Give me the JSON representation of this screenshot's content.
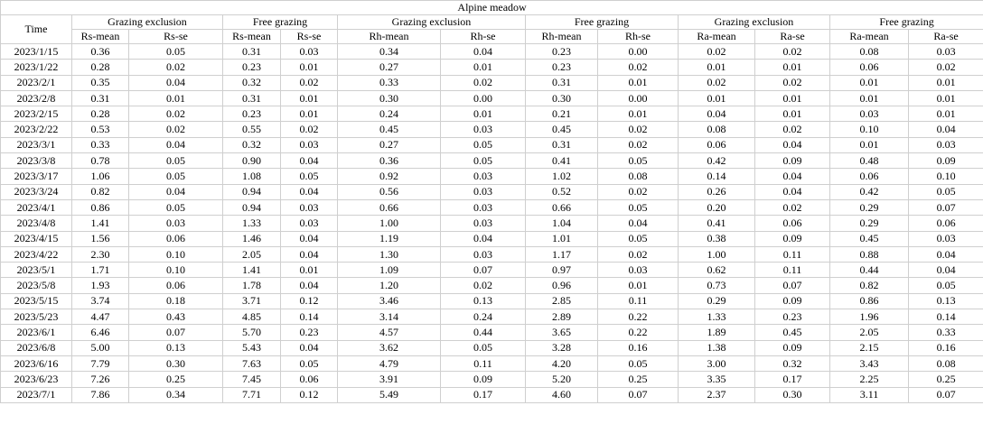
{
  "table": {
    "title": "Alpine meadow",
    "time_label": "Time",
    "groups": [
      {
        "label": "Grazing exclusion",
        "cols": [
          "Rs-mean",
          "Rs-se"
        ]
      },
      {
        "label": "Free grazing",
        "cols": [
          "Rs-mean",
          "Rs-se"
        ]
      },
      {
        "label": "Grazing exclusion",
        "cols": [
          "Rh-mean",
          "Rh-se"
        ]
      },
      {
        "label": "Free grazing",
        "cols": [
          "Rh-mean",
          "Rh-se"
        ]
      },
      {
        "label": "Grazing exclusion",
        "cols": [
          "Ra-mean",
          "Ra-se"
        ]
      },
      {
        "label": "Free grazing",
        "cols": [
          "Ra-mean",
          "Ra-se"
        ]
      }
    ],
    "rows": [
      {
        "time": "2023/1/15",
        "values": [
          "0.36",
          "0.05",
          "0.31",
          "0.03",
          "0.34",
          "0.04",
          "0.23",
          "0.00",
          "0.02",
          "0.02",
          "0.08",
          "0.03"
        ]
      },
      {
        "time": "2023/1/22",
        "values": [
          "0.28",
          "0.02",
          "0.23",
          "0.01",
          "0.27",
          "0.01",
          "0.23",
          "0.02",
          "0.01",
          "0.01",
          "0.06",
          "0.02"
        ]
      },
      {
        "time": "2023/2/1",
        "values": [
          "0.35",
          "0.04",
          "0.32",
          "0.02",
          "0.33",
          "0.02",
          "0.31",
          "0.01",
          "0.02",
          "0.02",
          "0.01",
          "0.01"
        ]
      },
      {
        "time": "2023/2/8",
        "values": [
          "0.31",
          "0.01",
          "0.31",
          "0.01",
          "0.30",
          "0.00",
          "0.30",
          "0.00",
          "0.01",
          "0.01",
          "0.01",
          "0.01"
        ]
      },
      {
        "time": "2023/2/15",
        "values": [
          "0.28",
          "0.02",
          "0.23",
          "0.01",
          "0.24",
          "0.01",
          "0.21",
          "0.01",
          "0.04",
          "0.01",
          "0.03",
          "0.01"
        ]
      },
      {
        "time": "2023/2/22",
        "values": [
          "0.53",
          "0.02",
          "0.55",
          "0.02",
          "0.45",
          "0.03",
          "0.45",
          "0.02",
          "0.08",
          "0.02",
          "0.10",
          "0.04"
        ]
      },
      {
        "time": "2023/3/1",
        "values": [
          "0.33",
          "0.04",
          "0.32",
          "0.03",
          "0.27",
          "0.05",
          "0.31",
          "0.02",
          "0.06",
          "0.04",
          "0.01",
          "0.03"
        ]
      },
      {
        "time": "2023/3/8",
        "values": [
          "0.78",
          "0.05",
          "0.90",
          "0.04",
          "0.36",
          "0.05",
          "0.41",
          "0.05",
          "0.42",
          "0.09",
          "0.48",
          "0.09"
        ]
      },
      {
        "time": "2023/3/17",
        "values": [
          "1.06",
          "0.05",
          "1.08",
          "0.05",
          "0.92",
          "0.03",
          "1.02",
          "0.08",
          "0.14",
          "0.04",
          "0.06",
          "0.10"
        ]
      },
      {
        "time": "2023/3/24",
        "values": [
          "0.82",
          "0.04",
          "0.94",
          "0.04",
          "0.56",
          "0.03",
          "0.52",
          "0.02",
          "0.26",
          "0.04",
          "0.42",
          "0.05"
        ]
      },
      {
        "time": "2023/4/1",
        "values": [
          "0.86",
          "0.05",
          "0.94",
          "0.03",
          "0.66",
          "0.03",
          "0.66",
          "0.05",
          "0.20",
          "0.02",
          "0.29",
          "0.07"
        ]
      },
      {
        "time": "2023/4/8",
        "values": [
          "1.41",
          "0.03",
          "1.33",
          "0.03",
          "1.00",
          "0.03",
          "1.04",
          "0.04",
          "0.41",
          "0.06",
          "0.29",
          "0.06"
        ]
      },
      {
        "time": "2023/4/15",
        "values": [
          "1.56",
          "0.06",
          "1.46",
          "0.04",
          "1.19",
          "0.04",
          "1.01",
          "0.05",
          "0.38",
          "0.09",
          "0.45",
          "0.03"
        ]
      },
      {
        "time": "2023/4/22",
        "values": [
          "2.30",
          "0.10",
          "2.05",
          "0.04",
          "1.30",
          "0.03",
          "1.17",
          "0.02",
          "1.00",
          "0.11",
          "0.88",
          "0.04"
        ]
      },
      {
        "time": "2023/5/1",
        "values": [
          "1.71",
          "0.10",
          "1.41",
          "0.01",
          "1.09",
          "0.07",
          "0.97",
          "0.03",
          "0.62",
          "0.11",
          "0.44",
          "0.04"
        ]
      },
      {
        "time": "2023/5/8",
        "values": [
          "1.93",
          "0.06",
          "1.78",
          "0.04",
          "1.20",
          "0.02",
          "0.96",
          "0.01",
          "0.73",
          "0.07",
          "0.82",
          "0.05"
        ]
      },
      {
        "time": "2023/5/15",
        "values": [
          "3.74",
          "0.18",
          "3.71",
          "0.12",
          "3.46",
          "0.13",
          "2.85",
          "0.11",
          "0.29",
          "0.09",
          "0.86",
          "0.13"
        ]
      },
      {
        "time": "2023/5/23",
        "values": [
          "4.47",
          "0.43",
          "4.85",
          "0.14",
          "3.14",
          "0.24",
          "2.89",
          "0.22",
          "1.33",
          "0.23",
          "1.96",
          "0.14"
        ]
      },
      {
        "time": "2023/6/1",
        "values": [
          "6.46",
          "0.07",
          "5.70",
          "0.23",
          "4.57",
          "0.44",
          "3.65",
          "0.22",
          "1.89",
          "0.45",
          "2.05",
          "0.33"
        ]
      },
      {
        "time": "2023/6/8",
        "values": [
          "5.00",
          "0.13",
          "5.43",
          "0.04",
          "3.62",
          "0.05",
          "3.28",
          "0.16",
          "1.38",
          "0.09",
          "2.15",
          "0.16"
        ]
      },
      {
        "time": "2023/6/16",
        "values": [
          "7.79",
          "0.30",
          "7.63",
          "0.05",
          "4.79",
          "0.11",
          "4.20",
          "0.05",
          "3.00",
          "0.32",
          "3.43",
          "0.08"
        ]
      },
      {
        "time": "2023/6/23",
        "values": [
          "7.26",
          "0.25",
          "7.45",
          "0.06",
          "3.91",
          "0.09",
          "5.20",
          "0.25",
          "3.35",
          "0.17",
          "2.25",
          "0.25"
        ]
      },
      {
        "time": "2023/7/1",
        "values": [
          "7.86",
          "0.34",
          "7.71",
          "0.12",
          "5.49",
          "0.17",
          "4.60",
          "0.07",
          "2.37",
          "0.30",
          "3.11",
          "0.07"
        ]
      }
    ]
  },
  "colors": {
    "grid": "#cfcfcf",
    "text": "#000000",
    "background": "#ffffff"
  }
}
